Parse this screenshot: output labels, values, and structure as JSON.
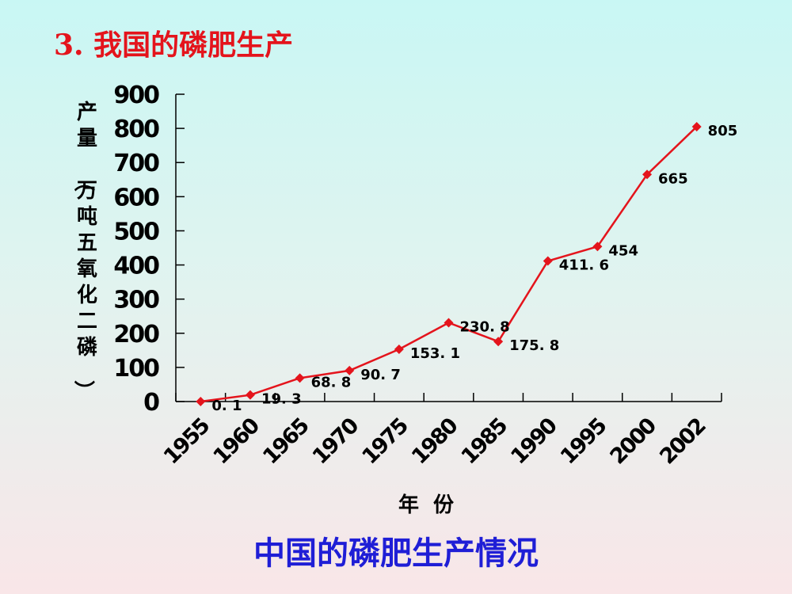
{
  "slide": {
    "title": "3.  我国的磷肥生产"
  },
  "chart_data": {
    "type": "line",
    "title": "中国的磷肥生产情况",
    "xlabel": "年  份",
    "ylabel": "产量（万吨五氧化二磷）",
    "ylim": [
      0,
      900
    ],
    "ytick_step": 100,
    "categories": [
      "1955",
      "1960",
      "1965",
      "1970",
      "1975",
      "1980",
      "1985",
      "1990",
      "1995",
      "2000",
      "2002"
    ],
    "series": [
      {
        "values": [
          0.1,
          19.3,
          68.8,
          90.7,
          153.1,
          230.8,
          175.8,
          411.6,
          454,
          665,
          805
        ],
        "labels": [
          "0. 1",
          "19. 3",
          "68. 8",
          "90. 7",
          "153. 1",
          "230. 8",
          "175. 8",
          "411. 6",
          "454",
          "665",
          "805"
        ]
      }
    ],
    "grid": false,
    "legend": "none",
    "colors": {
      "line": "#e4141c",
      "marker": "#e4141c",
      "axis": "#000000"
    }
  }
}
